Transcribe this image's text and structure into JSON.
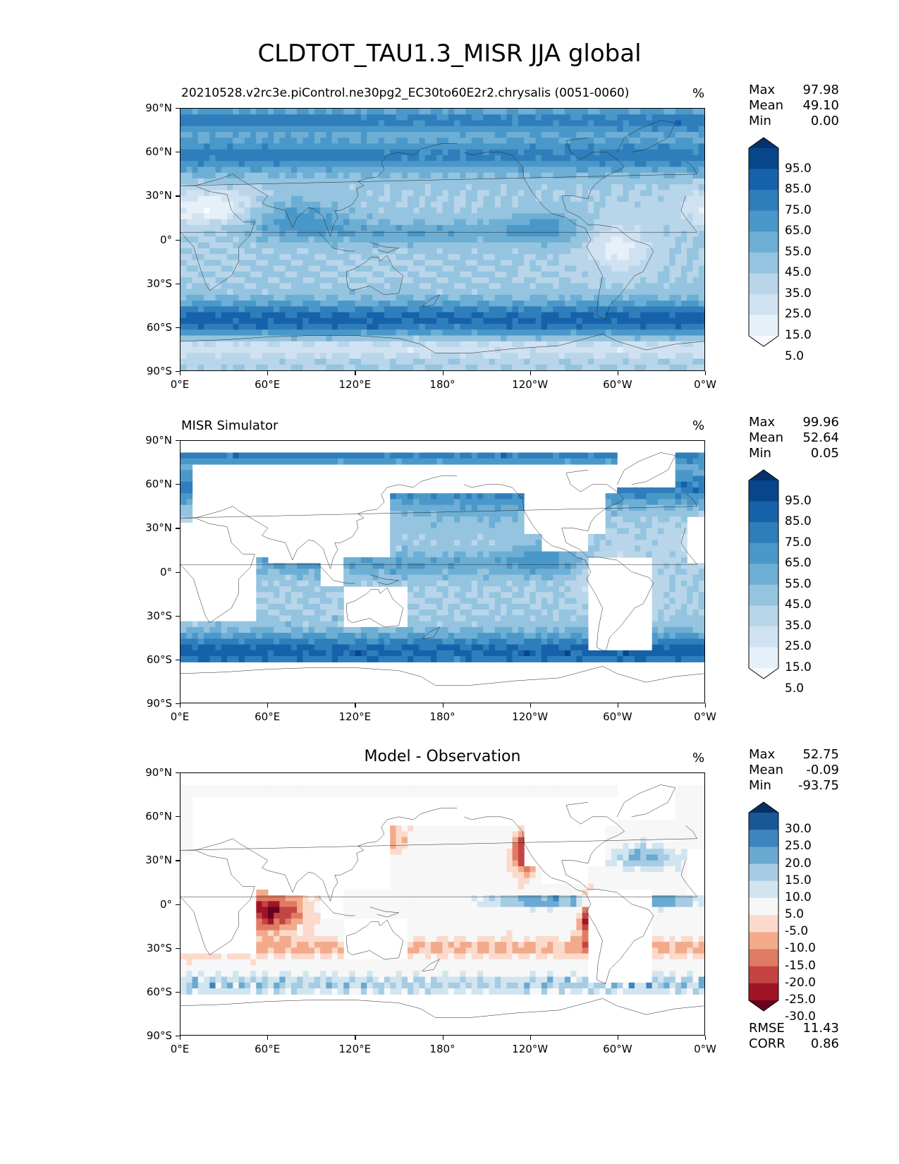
{
  "title": "CLDTOT_TAU1.3_MISR JJA global",
  "axes": {
    "lat_ticks": [
      "90°N",
      "60°N",
      "30°N",
      "0°",
      "30°S",
      "60°S",
      "90°S"
    ],
    "lon_ticks": [
      "0°E",
      "60°E",
      "120°E",
      "180°",
      "120°W",
      "60°W",
      "0°W"
    ]
  },
  "panels": [
    {
      "id": "model",
      "subtitle": "20210528.v2rc3e.piControl.ne30pg2_EC30to60E2r2.chrysalis (0051-0060)",
      "subtitle_style": "left",
      "unit": "%",
      "stats": {
        "max_label": "Max",
        "max": "97.98",
        "mean_label": "Mean",
        "mean": "49.10",
        "min_label": "Min",
        "min": "0.00"
      },
      "colorbar": {
        "labels": [
          "95.0",
          "85.0",
          "75.0",
          "65.0",
          "55.0",
          "45.0",
          "35.0",
          "25.0",
          "15.0",
          "5.0"
        ],
        "colors": [
          "#08306b",
          "#08468c",
          "#1662aa",
          "#2f7ebc",
          "#4a98c9",
          "#6daed5",
          "#94c4df",
          "#b8d5ea",
          "#d0e2f2",
          "#e6f0f9",
          "#f7fbff"
        ]
      },
      "fields": "model"
    },
    {
      "id": "obs",
      "subtitle": "MISR Simulator",
      "subtitle_style": "left",
      "unit": "%",
      "stats": {
        "max_label": "Max",
        "max": "99.96",
        "mean_label": "Mean",
        "mean": "52.64",
        "min_label": "Min",
        "min": "0.05"
      },
      "colorbar": {
        "labels": [
          "95.0",
          "85.0",
          "75.0",
          "65.0",
          "55.0",
          "45.0",
          "35.0",
          "25.0",
          "15.0",
          "5.0"
        ],
        "colors": [
          "#08306b",
          "#08468c",
          "#1662aa",
          "#2f7ebc",
          "#4a98c9",
          "#6daed5",
          "#94c4df",
          "#b8d5ea",
          "#d0e2f2",
          "#e6f0f9",
          "#f7fbff"
        ]
      },
      "fields": "obs"
    },
    {
      "id": "diff",
      "subtitle": "Model - Observation",
      "subtitle_style": "center",
      "unit": "%",
      "stats": {
        "max_label": "Max",
        "max": "52.75",
        "mean_label": "Mean",
        "mean": "-0.09",
        "min_label": "Min",
        "min": "-93.75"
      },
      "colorbar": {
        "labels": [
          "30.0",
          "25.0",
          "20.0",
          "15.0",
          "10.0",
          "5.0",
          "-5.0",
          "-10.0",
          "-15.0",
          "-20.0",
          "-25.0",
          "-30.0"
        ],
        "colors": [
          "#053061",
          "#1a5796",
          "#3b85c0",
          "#6aa9d1",
          "#a5cce3",
          "#d1e5f0",
          "#f7f7f7",
          "#fbdacb",
          "#f3aa8a",
          "#e07b63",
          "#c44444",
          "#a01425",
          "#67001f"
        ]
      },
      "metrics": {
        "rmse_label": "RMSE",
        "rmse": "11.43",
        "corr_label": "CORR",
        "corr": "0.86"
      },
      "fields": "diff"
    }
  ]
}
